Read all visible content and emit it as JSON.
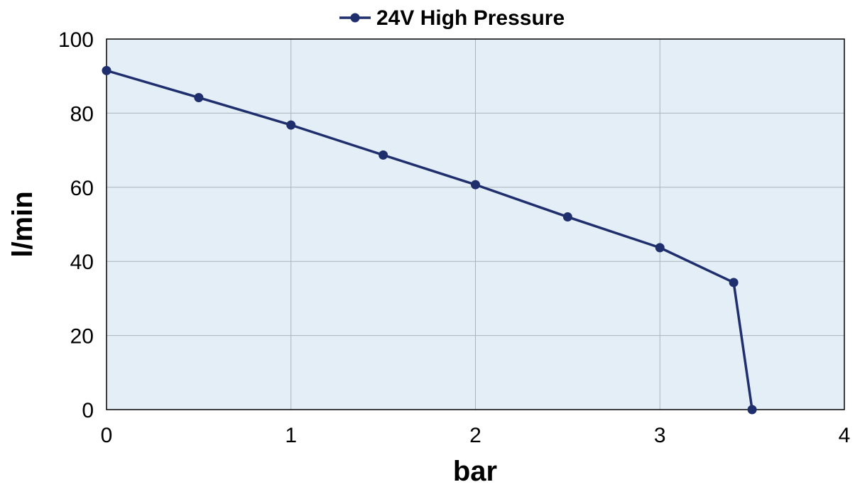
{
  "chart_data": {
    "type": "line",
    "xlabel": "bar",
    "ylabel": "l/min",
    "xlim": [
      0,
      4
    ],
    "ylim": [
      0,
      100
    ],
    "xticks": [
      0,
      1,
      2,
      3,
      4
    ],
    "yticks": [
      0,
      20,
      40,
      60,
      80,
      100
    ],
    "grid": true,
    "legend": "top-center",
    "plot_background": "#e4eef6",
    "series": [
      {
        "name": "24V High Pressure",
        "color": "#1f2f6e",
        "x": [
          0,
          0.5,
          1,
          1.5,
          2,
          2.5,
          3,
          3.4,
          3.5
        ],
        "y": [
          91.5,
          84.2,
          76.8,
          68.7,
          60.7,
          52.0,
          43.7,
          34.3,
          0
        ]
      }
    ]
  }
}
